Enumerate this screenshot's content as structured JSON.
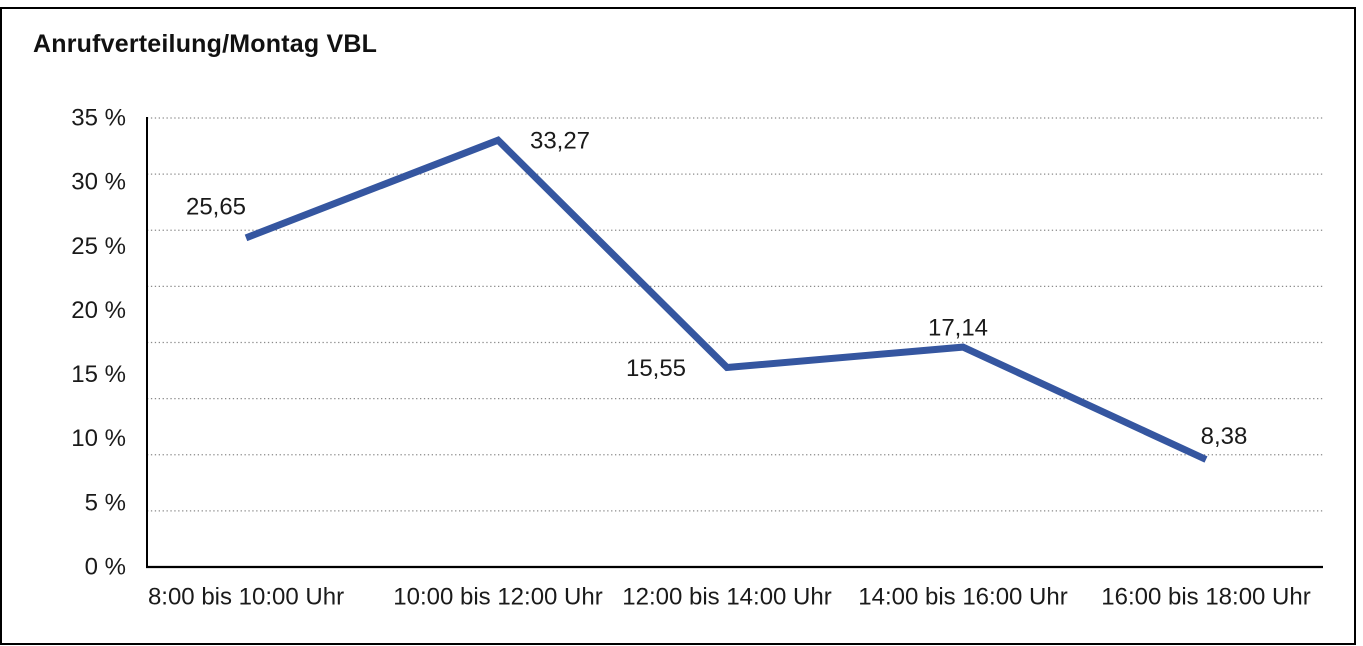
{
  "chart_data": {
    "type": "line",
    "title": "Anrufverteilung/Montag VBL",
    "categories": [
      "8:00 bis 10:00 Uhr",
      "10:00 bis 12:00 Uhr",
      "12:00 bis 14:00 Uhr",
      "14:00 bis 16:00 Uhr",
      "16:00 bis 18:00 Uhr"
    ],
    "values": [
      25.65,
      33.27,
      15.55,
      17.14,
      8.38
    ],
    "point_labels": [
      "25,65",
      "33,27",
      "15,55",
      "17,14",
      "8,38"
    ],
    "yticks": [
      "35 %",
      "30 %",
      "25 %",
      "20 %",
      "15 %",
      "10 %",
      "5 %",
      "0 %"
    ],
    "ylim": [
      0,
      35
    ],
    "xlabel": "",
    "ylabel": "",
    "grid": "horizontal-dotted",
    "legend": "none",
    "line_color": "#3556A0",
    "grid_color": "#8a8a8a",
    "axis_color": "#000000",
    "text_color": "#1a1a1a"
  }
}
